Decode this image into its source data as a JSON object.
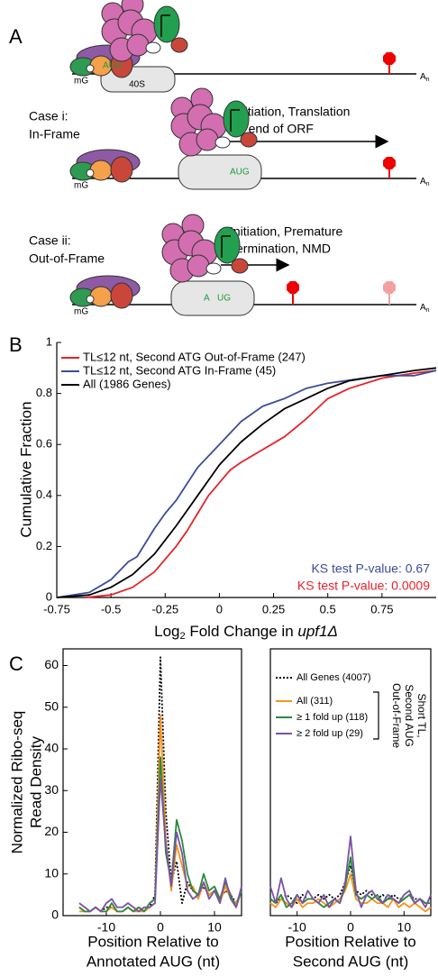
{
  "diagram": {
    "panel": "A",
    "cap": "mG",
    "start_codon": "AUG",
    "subunit": "40S",
    "polyA": "A",
    "polyA_sub": "n",
    "case_i": [
      "Case i:",
      "In-Frame"
    ],
    "case_i_outcome": [
      "Initiation, Translation",
      "to end of ORF"
    ],
    "case_ii": [
      "Case ii:",
      "Out-of-Frame"
    ],
    "case_ii_outcome": [
      "Initiation, Premature",
      "Termination, NMD"
    ],
    "split_codon": [
      "A",
      "UG"
    ]
  },
  "chart_data": [
    {
      "type": "line",
      "panel": "B",
      "ylabel": "Cumulative Fraction",
      "xlabel": [
        "Log",
        "2",
        " Fold Change in ",
        "upf1Δ"
      ],
      "xlim": [
        -0.75,
        1
      ],
      "ylim": [
        0,
        1
      ],
      "xticks": [
        -0.75,
        -0.5,
        -0.25,
        0,
        0.25,
        0.5,
        0.75
      ],
      "yticks": [
        0,
        0.2,
        0.4,
        0.6,
        0.8,
        1
      ],
      "legend": "upper left",
      "series": [
        {
          "name": "TL≤12 nt, Second ATG Out-of-Frame (247)",
          "color": "#e8212a",
          "x": [
            -0.62,
            -0.5,
            -0.4,
            -0.3,
            -0.2,
            -0.15,
            -0.1,
            -0.05,
            0,
            0.05,
            0.1,
            0.2,
            0.3,
            0.4,
            0.5,
            0.6,
            0.75,
            0.9,
            1
          ],
          "values": [
            0,
            0.01,
            0.04,
            0.1,
            0.2,
            0.26,
            0.33,
            0.4,
            0.45,
            0.5,
            0.53,
            0.58,
            0.63,
            0.7,
            0.78,
            0.82,
            0.86,
            0.88,
            0.89
          ]
        },
        {
          "name": "TL≤12 nt, Second ATG In-Frame (45)",
          "color": "#3e4c9b",
          "x": [
            -0.75,
            -0.6,
            -0.5,
            -0.42,
            -0.38,
            -0.3,
            -0.25,
            -0.2,
            -0.1,
            0,
            0.1,
            0.2,
            0.3,
            0.4,
            0.5,
            0.75,
            0.9,
            1
          ],
          "values": [
            0,
            0.02,
            0.07,
            0.14,
            0.16,
            0.27,
            0.33,
            0.38,
            0.51,
            0.6,
            0.69,
            0.75,
            0.78,
            0.82,
            0.84,
            0.87,
            0.87,
            0.89
          ]
        },
        {
          "name": "All (1986 Genes)",
          "color": "#000000",
          "x": [
            -0.75,
            -0.6,
            -0.5,
            -0.4,
            -0.3,
            -0.2,
            -0.1,
            0,
            0.1,
            0.2,
            0.3,
            0.4,
            0.5,
            0.6,
            0.75,
            0.9,
            1
          ],
          "values": [
            0,
            0.01,
            0.04,
            0.09,
            0.17,
            0.28,
            0.4,
            0.52,
            0.61,
            0.68,
            0.74,
            0.78,
            0.82,
            0.85,
            0.87,
            0.89,
            0.9
          ]
        }
      ],
      "annotations": [
        {
          "text": "KS test P-value: 0.67",
          "color": "#3e4c9b"
        },
        {
          "text": "KS test P-value: 0.0009",
          "color": "#e8212a"
        }
      ]
    },
    {
      "type": "line",
      "panel": "C",
      "ylabel": [
        "Normalized Ribo-seq",
        "Read Density"
      ],
      "xlabel": [
        "Position Relative to",
        "Annotated AUG (nt)"
      ],
      "xlim": [
        -18,
        15
      ],
      "ylim": [
        0,
        64
      ],
      "xticks": [
        -10,
        0,
        10
      ],
      "yticks": [
        0,
        10,
        20,
        30,
        40,
        50,
        60
      ],
      "x": [
        -15,
        -14,
        -13,
        -12,
        -11,
        -10,
        -9,
        -8,
        -7,
        -6,
        -5,
        -4,
        -3,
        -2,
        -1,
        0,
        1,
        2,
        3,
        4,
        5,
        6,
        7,
        8,
        9,
        10,
        11,
        12,
        13,
        14,
        15
      ],
      "series": [
        {
          "color": "#000000",
          "style": "dotted",
          "values": [
            2,
            1,
            1,
            2,
            1,
            2,
            2,
            1,
            1,
            2,
            1,
            2,
            1,
            2,
            5,
            62,
            25,
            8,
            13,
            3,
            8,
            6,
            5,
            7,
            5,
            6,
            4,
            6,
            5,
            3,
            6
          ]
        },
        {
          "color": "#f7941d",
          "values": [
            1,
            1,
            1,
            2,
            1,
            1,
            2,
            1,
            1,
            2,
            1,
            1,
            1,
            2,
            3,
            48,
            18,
            6,
            17,
            12,
            7,
            7,
            4,
            8,
            5,
            6,
            3,
            7,
            4,
            3,
            6
          ]
        },
        {
          "color": "#2a8a3e",
          "values": [
            2,
            1,
            1,
            2,
            1,
            1,
            3,
            1,
            1,
            2,
            1,
            2,
            1,
            3,
            4,
            38,
            15,
            8,
            23,
            18,
            10,
            6,
            5,
            10,
            6,
            7,
            4,
            8,
            5,
            2,
            6
          ]
        },
        {
          "color": "#7b52a6",
          "values": [
            3,
            2,
            1,
            2,
            1,
            3,
            4,
            2,
            2,
            3,
            2,
            1,
            2,
            2,
            3,
            33,
            17,
            7,
            20,
            15,
            6,
            4,
            5,
            8,
            4,
            6,
            3,
            9,
            4,
            2,
            7
          ]
        }
      ]
    },
    {
      "type": "line",
      "xlabel": [
        "Position Relative to",
        "Second AUG (nt)"
      ],
      "xlim": [
        -15,
        15
      ],
      "ylim": [
        0,
        64
      ],
      "xticks": [
        -10,
        0,
        10
      ],
      "legend": "upper left",
      "group_label": [
        "Short TL,",
        "Second AUG",
        "Out-of-Frame"
      ],
      "x": [
        -15,
        -14,
        -13,
        -12,
        -11,
        -10,
        -9,
        -8,
        -7,
        -6,
        -5,
        -4,
        -3,
        -2,
        -1,
        0,
        1,
        2,
        3,
        4,
        5,
        6,
        7,
        8,
        9,
        10,
        11,
        12,
        13,
        14,
        15
      ],
      "series": [
        {
          "name": "All Genes (4007)",
          "color": "#000000",
          "style": "dotted",
          "values": [
            4,
            3,
            4,
            5,
            4,
            3,
            5,
            4,
            4,
            5,
            4,
            5,
            4,
            5,
            8,
            12,
            6,
            5,
            6,
            5,
            4,
            5,
            4,
            5,
            4,
            4,
            5,
            4,
            4,
            3,
            4
          ]
        },
        {
          "name": "All (311)",
          "color": "#f7941d",
          "values": [
            3,
            2,
            4,
            3,
            2,
            4,
            2,
            3,
            3,
            4,
            3,
            2,
            3,
            4,
            6,
            10,
            4,
            3,
            3,
            4,
            3,
            3,
            2,
            4,
            2,
            3,
            2,
            3,
            2,
            1,
            2
          ]
        },
        {
          "name": "≥ 1 fold up (118)",
          "color": "#2a8a3e",
          "values": [
            4,
            3,
            5,
            2,
            3,
            5,
            3,
            4,
            4,
            3,
            2,
            3,
            4,
            3,
            7,
            14,
            5,
            4,
            5,
            4,
            5,
            3,
            4,
            4,
            3,
            4,
            5,
            3,
            4,
            3,
            3
          ]
        },
        {
          "name": "≥ 2 fold up (29)",
          "color": "#7b52a6",
          "values": [
            7,
            3,
            9,
            4,
            2,
            5,
            3,
            6,
            4,
            3,
            5,
            2,
            4,
            3,
            8,
            19,
            6,
            2,
            5,
            6,
            4,
            3,
            5,
            4,
            3,
            5,
            6,
            3,
            4,
            2,
            5
          ]
        }
      ]
    }
  ]
}
